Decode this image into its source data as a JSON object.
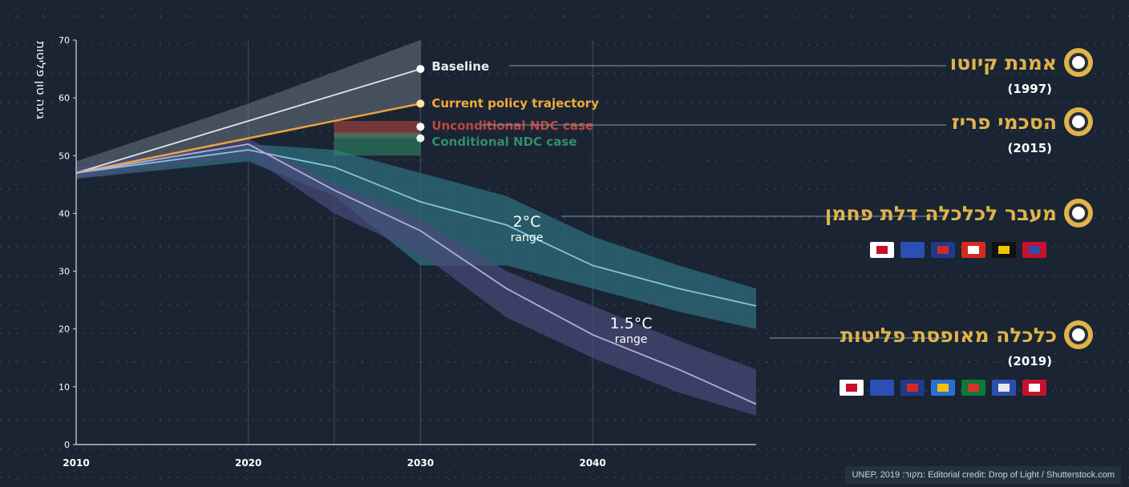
{
  "colors": {
    "background": "#1a2432",
    "grid_dot": "#6f7f91",
    "axis": "#d7dde4",
    "gold": "#e0b44a",
    "baseline": "#e9edf1",
    "current_policy": "#f4a93b",
    "unconditional": "#c0473f",
    "conditional": "#2f8f6a",
    "two_deg": "#7fd0e0",
    "two_deg_band": "#2f6c7c",
    "one_five": "#b7b4e0",
    "one_five_band": "#4a4a7a"
  },
  "chart_data": {
    "type": "line",
    "title": "",
    "xlabel": "",
    "ylabel": "גיגה טון פליטות",
    "xlim": [
      2010,
      2049.5
    ],
    "ylim": [
      0,
      70
    ],
    "x_ticks": [
      "2010",
      "2020",
      "2030",
      "2040"
    ],
    "y_ticks": [
      "0",
      "10",
      "20",
      "30",
      "40",
      "50",
      "60",
      "70"
    ],
    "grid": true,
    "series": [
      {
        "key": "baseline",
        "name": "Baseline",
        "color": "#e9edf1",
        "points": [
          [
            2010,
            47
          ],
          [
            2020,
            56
          ],
          [
            2030,
            65
          ]
        ],
        "band_upper": [
          [
            2010,
            49
          ],
          [
            2020,
            59
          ],
          [
            2030,
            70
          ]
        ],
        "band_lower": [
          [
            2010,
            46
          ],
          [
            2020,
            53
          ],
          [
            2030,
            59
          ]
        ]
      },
      {
        "key": "current",
        "name": "Current policy trajectory",
        "color": "#f4a93b",
        "points": [
          [
            2010,
            47
          ],
          [
            2020,
            53
          ],
          [
            2030,
            59
          ]
        ]
      },
      {
        "key": "uncond",
        "name": "Unconditional NDC case",
        "color": "#c0473f",
        "points": [
          [
            2030,
            55
          ]
        ],
        "bar_range": [
          53,
          56
        ]
      },
      {
        "key": "cond",
        "name": "Conditional NDC case",
        "color": "#2f8f6a",
        "points": [
          [
            2030,
            53
          ]
        ],
        "bar_range": [
          50,
          54
        ]
      },
      {
        "key": "two",
        "name": "2°C\nrange",
        "color": "#7fd0e0",
        "points": [
          [
            2010,
            47
          ],
          [
            2020,
            51
          ],
          [
            2025,
            48
          ],
          [
            2030,
            42
          ],
          [
            2035,
            38
          ],
          [
            2040,
            31
          ],
          [
            2045,
            27
          ],
          [
            2049.5,
            24
          ]
        ],
        "band_upper": [
          [
            2010,
            48
          ],
          [
            2020,
            52
          ],
          [
            2025,
            51
          ],
          [
            2030,
            47
          ],
          [
            2035,
            43
          ],
          [
            2040,
            36
          ],
          [
            2045,
            31
          ],
          [
            2049.5,
            27
          ]
        ],
        "band_lower": [
          [
            2010,
            46
          ],
          [
            2020,
            49
          ],
          [
            2025,
            43
          ],
          [
            2030,
            31
          ],
          [
            2035,
            31
          ],
          [
            2040,
            27
          ],
          [
            2045,
            23
          ],
          [
            2049.5,
            20
          ]
        ]
      },
      {
        "key": "onefive",
        "name": "1.5°C\nrange",
        "color": "#b7b4e0",
        "points": [
          [
            2010,
            47
          ],
          [
            2020,
            52
          ],
          [
            2025,
            44
          ],
          [
            2030,
            37
          ],
          [
            2035,
            27
          ],
          [
            2040,
            19
          ],
          [
            2045,
            13
          ],
          [
            2049.5,
            7
          ]
        ],
        "band_upper": [
          [
            2010,
            48
          ],
          [
            2020,
            53
          ],
          [
            2025,
            45
          ],
          [
            2030,
            39
          ],
          [
            2035,
            30
          ],
          [
            2040,
            24
          ],
          [
            2045,
            18
          ],
          [
            2049.5,
            13
          ]
        ],
        "band_lower": [
          [
            2010,
            46
          ],
          [
            2020,
            50
          ],
          [
            2025,
            40
          ],
          [
            2030,
            33
          ],
          [
            2035,
            22
          ],
          [
            2040,
            15
          ],
          [
            2045,
            9
          ],
          [
            2049.5,
            5
          ]
        ]
      }
    ]
  },
  "milestones": [
    {
      "title": "אמנת קיוטו",
      "year": "(1997)",
      "flags": []
    },
    {
      "title": "הסכמי פריז",
      "year": "(2015)",
      "flags": []
    },
    {
      "title": "מעבר לכלכלה דלת פחמן",
      "year": "",
      "flags": [
        [
          "#ffffff",
          "#c8102e"
        ],
        [
          "#2b4fb3",
          "#2b4fb3"
        ],
        [
          "#1f3a8a",
          "#d22a2a"
        ],
        [
          "#d52b1e",
          "#ffffff"
        ],
        [
          "#111111",
          "#f2c200"
        ],
        [
          "#c8102e",
          "#2f4fa8"
        ]
      ]
    },
    {
      "title": "כלכלה מאופסת פליטות",
      "year": "(2019)",
      "flags": [
        [
          "#ffffff",
          "#c8102e"
        ],
        [
          "#2b4fb3",
          "#2b4fb3"
        ],
        [
          "#1f3a8a",
          "#d22a2a"
        ],
        [
          "#2a6fd1",
          "#f3c300"
        ],
        [
          "#0b7a3a",
          "#d8332b"
        ],
        [
          "#2b4fb3",
          "#e8e8e8"
        ],
        [
          "#c8102e",
          "#ffffff"
        ]
      ]
    }
  ],
  "credit": "UNEP, 2019 :מקור: Editorial credit: Drop of Light / Shutterstock.com"
}
